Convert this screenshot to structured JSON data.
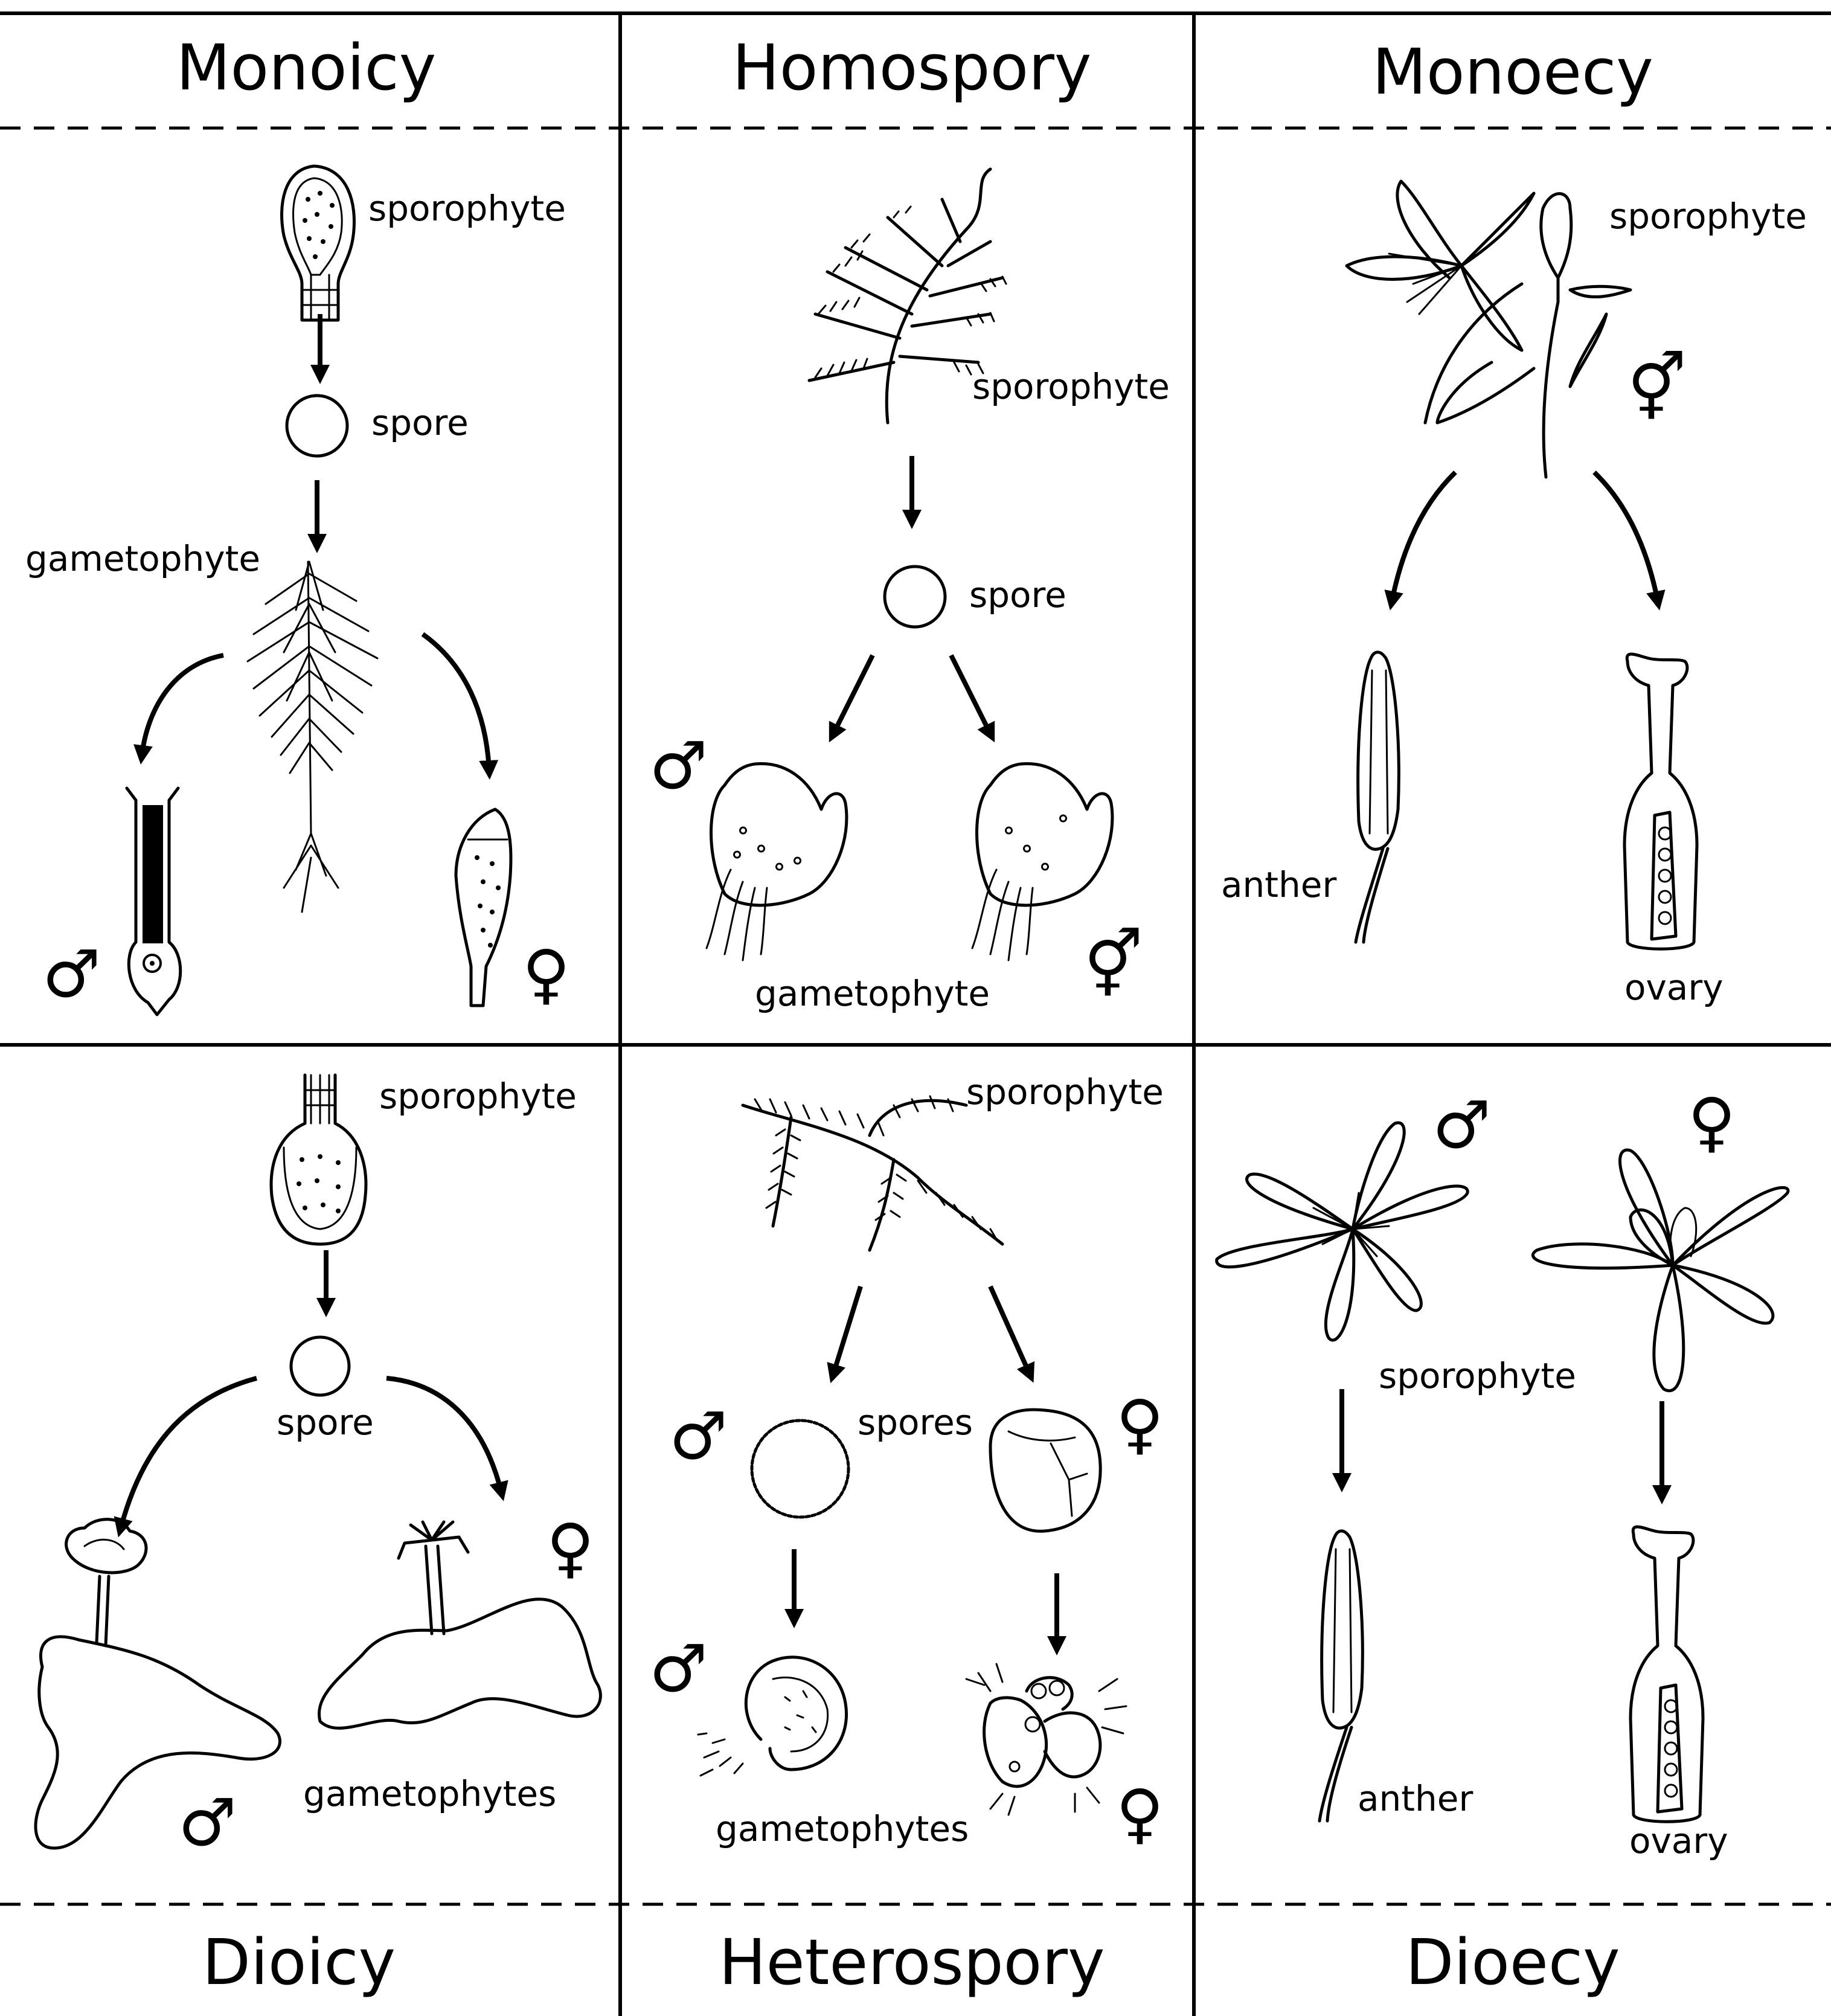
{
  "titles": {
    "monoicy": "Monoicy",
    "homospory": "Homospory",
    "monoecy": "Monoecy",
    "dioicy": "Dioicy",
    "heterospory": "Heterospory",
    "dioecy": "Dioecy"
  },
  "monoicy": {
    "sporophyte": "sporophyte",
    "spore": "spore",
    "gametophyte": "gametophyte",
    "male_symbol": "♂",
    "female_symbol": "♀"
  },
  "homospory": {
    "sporophyte": "sporophyte",
    "spore": "spore",
    "gametophyte": "gametophyte",
    "male_symbol": "♂",
    "bisexual_symbol": "⚥"
  },
  "monoecy": {
    "sporophyte": "sporophyte",
    "bisexual_symbol": "⚥",
    "anther": "anther",
    "ovary": "ovary"
  },
  "dioicy": {
    "sporophyte": "sporophyte",
    "spore": "spore",
    "gametophytes": "gametophytes",
    "male_symbol": "♂",
    "female_symbol": "♀"
  },
  "heterospory": {
    "sporophyte": "sporophyte",
    "spores": "spores",
    "gametophytes": "gametophytes",
    "male_symbol": "♂",
    "female_symbol": "♀"
  },
  "dioecy": {
    "sporophyte": "sporophyte",
    "anther": "anther",
    "ovary": "ovary",
    "male_symbol": "♂",
    "female_symbol": "♀"
  }
}
